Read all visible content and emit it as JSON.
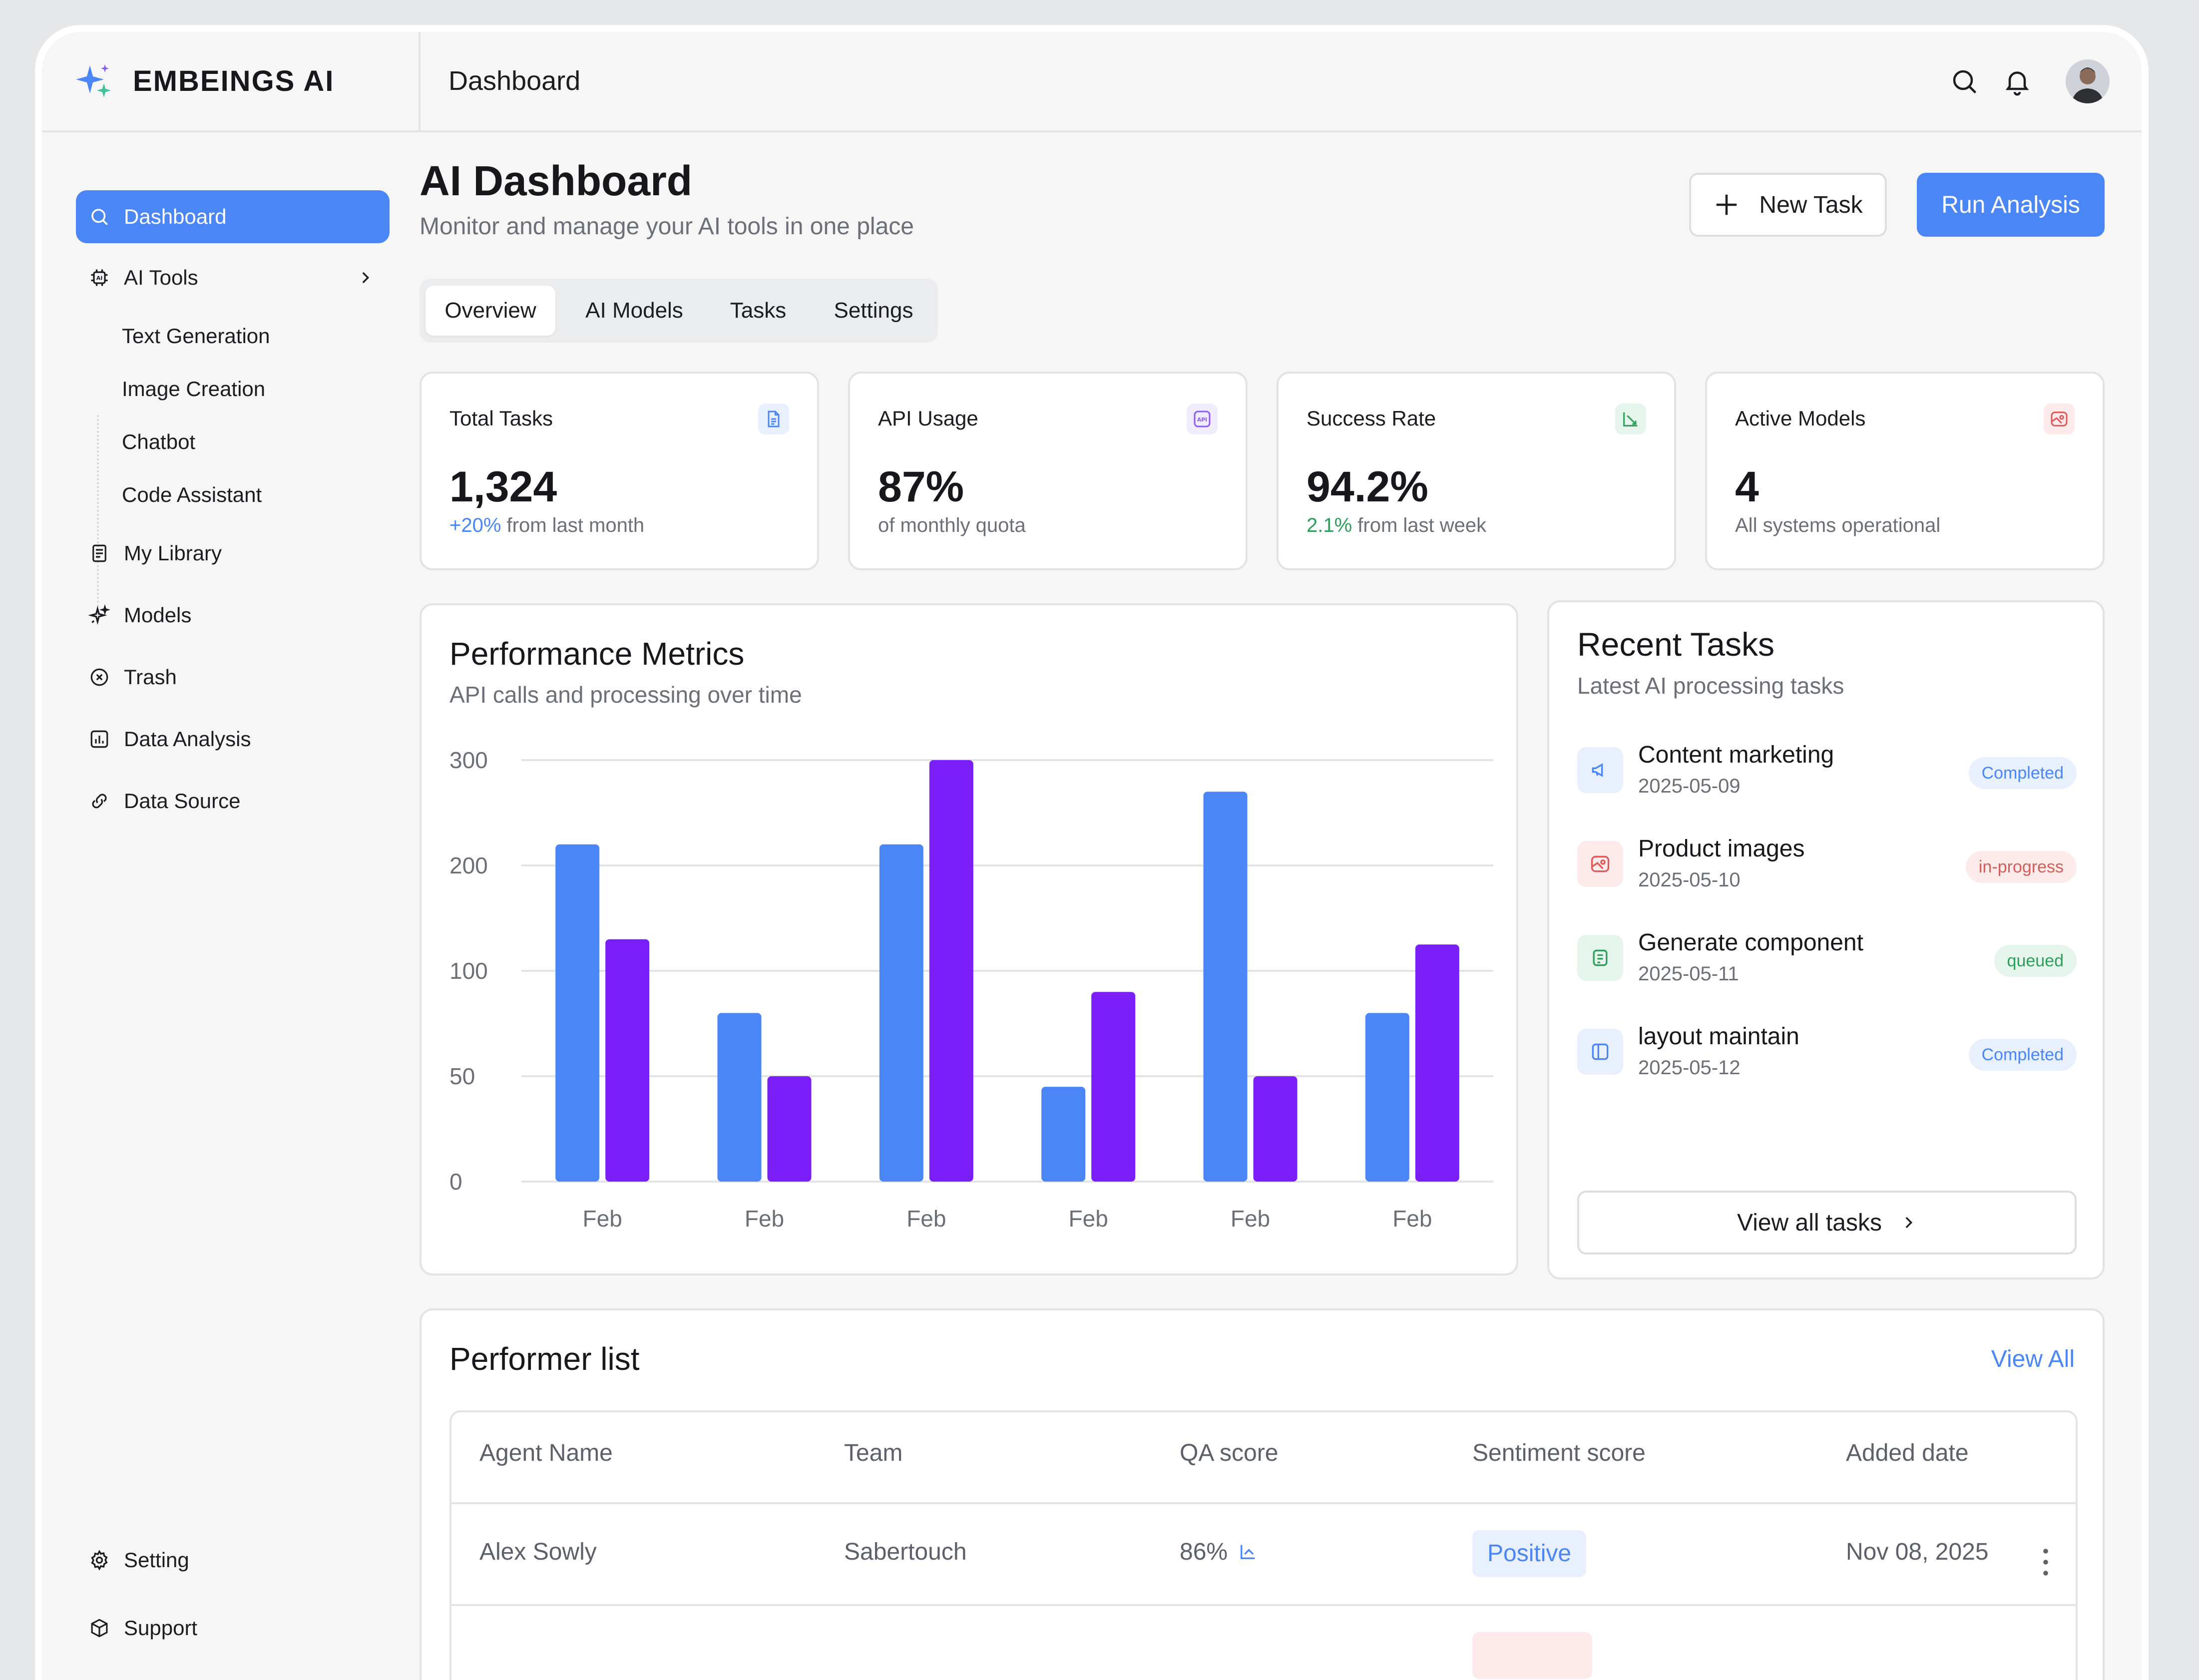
{
  "brand": {
    "name": "EMBEINGS AI"
  },
  "topbar": {
    "title": "Dashboard"
  },
  "sidebar": {
    "items": [
      {
        "label": "Dashboard",
        "icon": "search-icon",
        "active": true
      },
      {
        "label": "AI Tools",
        "icon": "ai-chip-icon"
      },
      {
        "label": "My Library",
        "icon": "library-icon"
      },
      {
        "label": "Models",
        "icon": "sparkle-icon"
      },
      {
        "label": "Trash",
        "icon": "trash-icon"
      },
      {
        "label": "Data Analysis",
        "icon": "chart-icon"
      },
      {
        "label": "Data Source",
        "icon": "link-icon"
      }
    ],
    "ai_tools_sub": [
      "Text Generation",
      "Image Creation",
      "Chatbot",
      "Code Assistant"
    ],
    "bottom": [
      {
        "label": "Setting",
        "icon": "gear-icon"
      },
      {
        "label": "Support",
        "icon": "cube-icon"
      }
    ]
  },
  "header": {
    "title": "AI Dashboard",
    "subtitle": "Monitor and manage your AI tools in one place",
    "new_task": "New Task",
    "run_analysis": "Run Analysis"
  },
  "tabs": [
    "Overview",
    "AI Models",
    "Tasks",
    "Settings"
  ],
  "stats": [
    {
      "label": "Total Tasks",
      "value": "1,324",
      "highlight": "+20%",
      "note": " from last month",
      "highlight_color": "#4a86f5",
      "icon": "document-icon",
      "icon_color": "#4a86f5",
      "icon_bg": "#e8f0fe"
    },
    {
      "label": "API Usage",
      "value": "87%",
      "highlight": "",
      "note": "of monthly quota",
      "highlight_color": "#4a86f5",
      "icon": "api-icon",
      "icon_color": "#8a5cf6",
      "icon_bg": "#f1ebfe"
    },
    {
      "label": "Success Rate",
      "value": "94.2%",
      "highlight": "2.1%",
      "note": " from last week",
      "highlight_color": "#2e9e5b",
      "icon": "growth-icon",
      "icon_color": "#2e9e5b",
      "icon_bg": "#e6f5ec"
    },
    {
      "label": "Active Models",
      "value": "4",
      "highlight": "",
      "note": "All systems operational",
      "highlight_color": "#4a86f5",
      "icon": "model-icon",
      "icon_color": "#e05a5a",
      "icon_bg": "#fdeaea"
    }
  ],
  "performance": {
    "title": "Performance Metrics",
    "subtitle": "API calls and processing over time"
  },
  "chart_data": {
    "type": "bar",
    "categories": [
      "Feb",
      "Feb",
      "Feb",
      "Feb",
      "Feb",
      "Feb"
    ],
    "y_ticks": [
      "300",
      "200",
      "100",
      "50",
      "0"
    ],
    "series": [
      {
        "values": [
          220,
          80,
          220,
          45,
          270,
          80
        ],
        "color": "#4a86f5"
      },
      {
        "values": [
          130,
          50,
          300,
          90,
          50,
          125
        ],
        "color": "#7a1ff7"
      }
    ],
    "grid": true,
    "legend": "none"
  },
  "recent": {
    "title": "Recent Tasks",
    "subtitle": "Latest AI processing tasks",
    "tasks": [
      {
        "name": "Content marketing",
        "date": "2025-05-09",
        "status": "Completed",
        "icon": "megaphone-icon",
        "icon_color": "#4a86f5",
        "icon_bg": "#e8f0fe",
        "badge_color": "#4a86f5",
        "badge_bg": "#e8f0fe"
      },
      {
        "name": "Product images",
        "date": "2025-05-10",
        "status": "in-progress",
        "icon": "image-icon",
        "icon_color": "#e05a5a",
        "icon_bg": "#fdeaea",
        "badge_color": "#d0605a",
        "badge_bg": "#fdeaea"
      },
      {
        "name": "Generate component",
        "date": "2025-05-11",
        "status": "queued",
        "icon": "component-icon",
        "icon_color": "#2e9e5b",
        "icon_bg": "#e6f5ec",
        "badge_color": "#2e9e5b",
        "badge_bg": "#e6f5ec"
      },
      {
        "name": "layout maintain",
        "date": "2025-05-12",
        "status": "Completed",
        "icon": "layout-icon",
        "icon_color": "#4a86f5",
        "icon_bg": "#e8f0fe",
        "badge_color": "#4a86f5",
        "badge_bg": "#e8f0fe"
      }
    ],
    "view_all": "View all tasks"
  },
  "performers": {
    "title": "Performer list",
    "view_all": "View All",
    "columns": [
      "Agent Name",
      "Team",
      "QA score",
      "Sentiment score",
      "Added date"
    ],
    "rows": [
      {
        "agent": "Alex Sowly",
        "team": "Sabertouch",
        "qa": "86%",
        "sentiment": "Positive",
        "date": "Nov 08, 2025"
      }
    ]
  }
}
